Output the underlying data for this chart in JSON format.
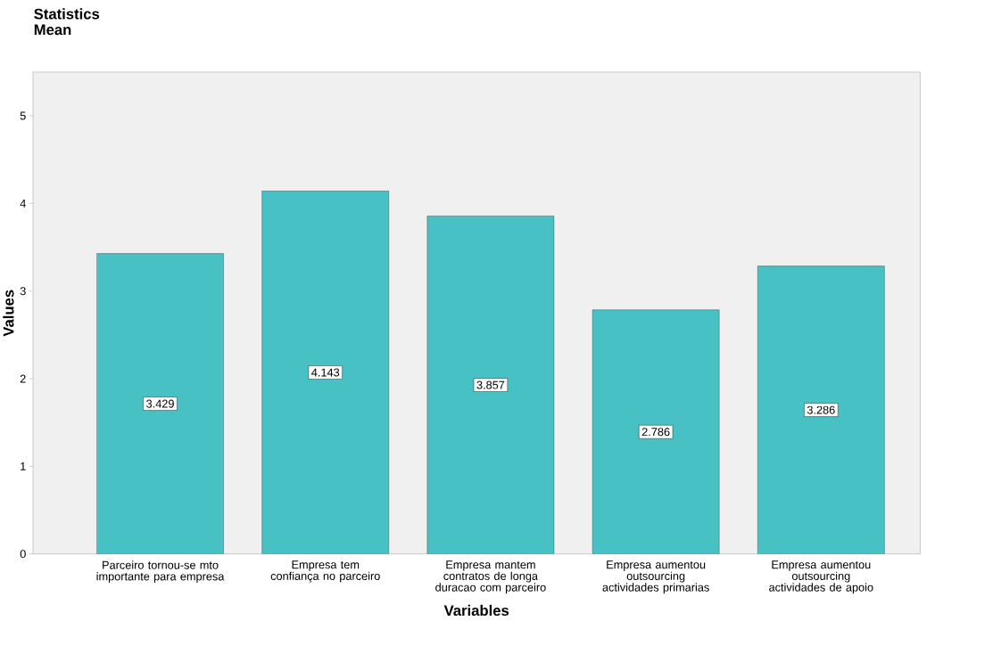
{
  "chart_data": {
    "type": "bar",
    "title": "Statistics",
    "subtitle": "Mean",
    "xlabel": "Variables",
    "ylabel": "Values",
    "categories": [
      "Parceiro tornou-se mto importante para empresa",
      "Empresa tem confiança no parceiro",
      "Empresa mantem contratos de longa duracao com parceiro",
      "Empresa aumentou outsourcing actividades primarias",
      "Empresa aumentou outsourcing actividades de apoio"
    ],
    "values": [
      3.429,
      4.143,
      3.857,
      2.786,
      3.286
    ],
    "color": "#48c1c4",
    "ylim": [
      0,
      5.5
    ],
    "yticks": [
      0,
      1,
      2,
      3,
      4,
      5
    ],
    "grid": false,
    "data_labels": true
  }
}
